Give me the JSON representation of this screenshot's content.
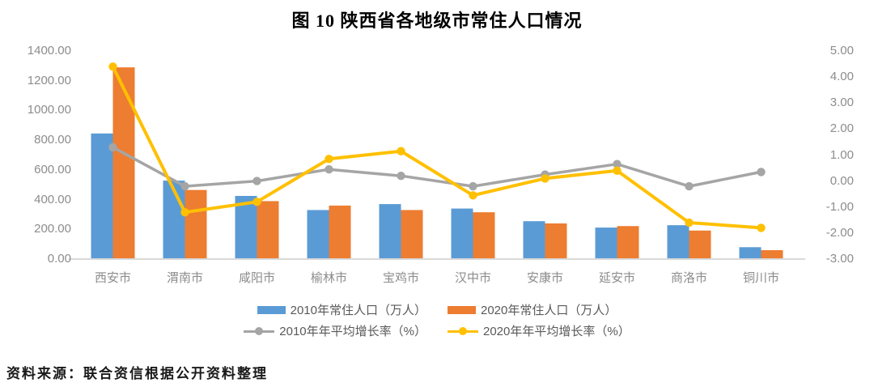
{
  "page": {
    "source_note": "资料来源：联合资信根据公开资料整理"
  },
  "chart_data": {
    "type": "combo-bar-line",
    "title": "图 10  陕西省各地级市常住人口情况",
    "categories": [
      "西安市",
      "渭南市",
      "咸阳市",
      "榆林市",
      "宝鸡市",
      "汉中市",
      "安康市",
      "延安市",
      "商洛市",
      "铜川市"
    ],
    "bar_series": [
      {
        "name": "2010年常住人口（万人）",
        "color": "#5B9BD5",
        "axis": "left",
        "values": [
          845,
          528,
          425,
          330,
          370,
          340,
          255,
          212,
          228,
          80
        ]
      },
      {
        "name": "2020年常住人口（万人）",
        "color": "#ED7D31",
        "axis": "left",
        "values": [
          1290,
          465,
          390,
          360,
          330,
          315,
          240,
          222,
          192,
          60
        ]
      }
    ],
    "line_series": [
      {
        "name": "2010年年平均增长率（%）",
        "color": "#A5A5A5",
        "axis": "right",
        "values": [
          1.3,
          -0.2,
          0.0,
          0.45,
          0.2,
          -0.2,
          0.25,
          0.65,
          -0.2,
          0.35
        ]
      },
      {
        "name": "2020年年平均增长率（%）",
        "color": "#FFC000",
        "axis": "right",
        "values": [
          4.4,
          -1.2,
          -0.8,
          0.85,
          1.15,
          -0.55,
          0.1,
          0.4,
          -1.6,
          -1.8
        ]
      }
    ],
    "left_axis": {
      "min": 0,
      "max": 1400,
      "tick_labels": [
        "0.00",
        "200.00",
        "400.00",
        "600.00",
        "800.00",
        "1000.00",
        "1200.00",
        "1400.00"
      ]
    },
    "right_axis": {
      "min": -3,
      "max": 5,
      "tick_labels": [
        "-3.00",
        "-2.00",
        "-1.00",
        "0.00",
        "1.00",
        "2.00",
        "3.00",
        "4.00",
        "5.00"
      ]
    },
    "grid": false,
    "legend_position": "bottom",
    "baseline_color": "#D9D9D9"
  }
}
